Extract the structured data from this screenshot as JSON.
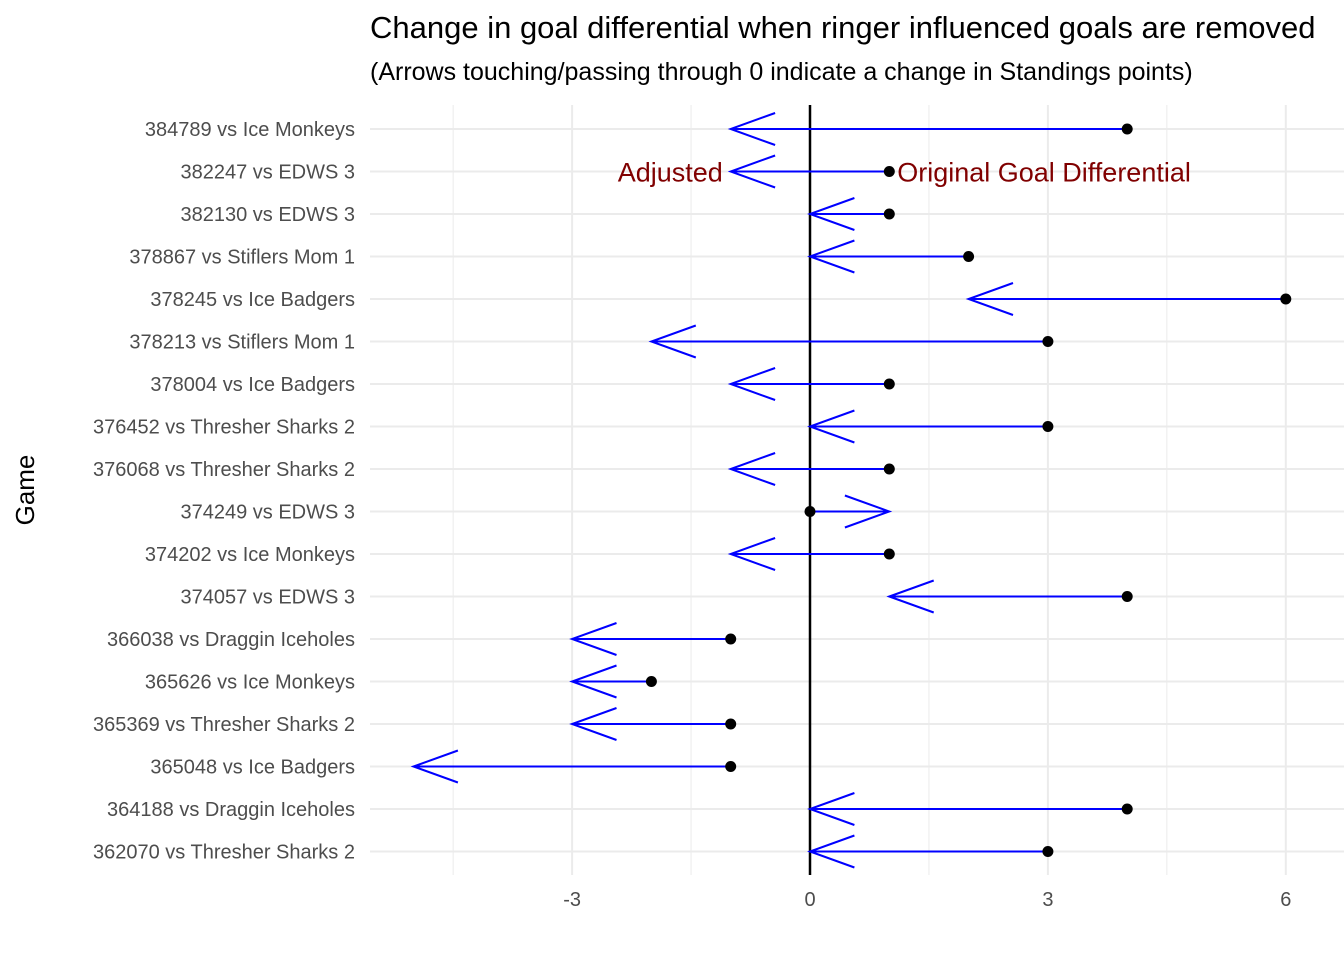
{
  "chart_data": {
    "type": "arrow-dot",
    "title": "Change in goal differential when ringer influenced goals are removed",
    "subtitle": "(Arrows touching/passing through 0 indicate a change in Standings points)",
    "ylabel": "Game",
    "xlabel": "",
    "x_ticks": [
      -3,
      0,
      3,
      6
    ],
    "x_tick_labels": [
      "-3",
      "0",
      "3",
      "6"
    ],
    "xlim": [
      -5.5,
      6.7
    ],
    "grid": true,
    "annotations": [
      {
        "text": "Adjusted",
        "x": -1.1,
        "category": "382247 vs EDWS 3",
        "align": "right"
      },
      {
        "text": "Original Goal Differential",
        "x": 1.1,
        "category": "382247 vs EDWS 3",
        "align": "left"
      }
    ],
    "colors": {
      "arrow": "#0000ff",
      "point": "#000000",
      "zero_line": "#000000",
      "annotation": "#800000",
      "grid": "#ebebeb"
    },
    "games": [
      {
        "label": "384789 vs Ice Monkeys",
        "original": 4,
        "adjusted": -1
      },
      {
        "label": "382247 vs EDWS 3",
        "original": 1,
        "adjusted": -1
      },
      {
        "label": "382130 vs EDWS 3",
        "original": 1,
        "adjusted": 0
      },
      {
        "label": "378867 vs Stiflers Mom 1",
        "original": 2,
        "adjusted": 0
      },
      {
        "label": "378245 vs Ice Badgers",
        "original": 6,
        "adjusted": 2
      },
      {
        "label": "378213 vs Stiflers Mom 1",
        "original": 3,
        "adjusted": -2
      },
      {
        "label": "378004 vs Ice Badgers",
        "original": 1,
        "adjusted": -1
      },
      {
        "label": "376452 vs Thresher Sharks 2",
        "original": 3,
        "adjusted": 0
      },
      {
        "label": "376068 vs Thresher Sharks 2",
        "original": 1,
        "adjusted": -1
      },
      {
        "label": "374249 vs EDWS 3",
        "original": 0,
        "adjusted": 1
      },
      {
        "label": "374202 vs Ice Monkeys",
        "original": 1,
        "adjusted": -1
      },
      {
        "label": "374057 vs EDWS 3",
        "original": 4,
        "adjusted": 1
      },
      {
        "label": "366038 vs Draggin Iceholes",
        "original": -1,
        "adjusted": -3
      },
      {
        "label": "365626 vs Ice Monkeys",
        "original": -2,
        "adjusted": -3
      },
      {
        "label": "365369 vs Thresher Sharks 2",
        "original": -1,
        "adjusted": -3
      },
      {
        "label": "365048 vs Ice Badgers",
        "original": -1,
        "adjusted": -5
      },
      {
        "label": "364188 vs Draggin Iceholes",
        "original": 4,
        "adjusted": 0
      },
      {
        "label": "362070 vs Thresher Sharks 2",
        "original": 3,
        "adjusted": 0
      }
    ]
  }
}
